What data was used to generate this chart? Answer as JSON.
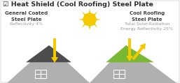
{
  "title_check": "☑",
  "title_text": " Heat Shield (Cool Roofing) Steel Plate",
  "title_color": "#2d2d2d",
  "title_fontsize": 6.8,
  "left_label": "General Coated\nSteel Plate",
  "left_sub": "Reflectivity 4%",
  "right_label": "Cool Roofing\nSteel Plate",
  "right_sub": "Total Solar-Radiation\nEnergy Reflectivity 25%",
  "label_color": "#444444",
  "sub_color": "#999999",
  "right_sub_color": "#999999",
  "sun_color": "#F5C900",
  "sun_ray_color": "#F5C900",
  "arrow_color": "#F5C900",
  "roof_gray": "#b0b0b0",
  "roof_dark": "#4d4d4d",
  "roof_green": "#78b833",
  "wall_color": "#cccccc",
  "win_color": "#aaaaaa",
  "bg_color": "#ffffff",
  "border_color": "#dddddd",
  "fig_w": 2.57,
  "fig_h": 1.19,
  "dpi": 100
}
